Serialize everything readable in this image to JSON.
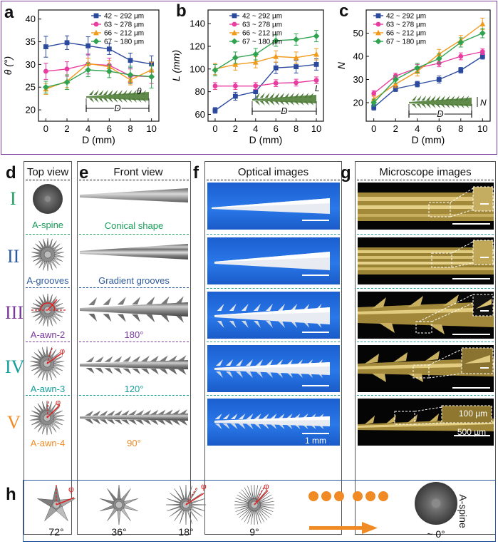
{
  "panels": {
    "a": "a",
    "b": "b",
    "c": "c",
    "d": "d",
    "e": "e",
    "f": "f",
    "g": "g",
    "h": "h"
  },
  "headers": {
    "top_view": "Top view",
    "front_view": "Front view",
    "optical": "Optical images",
    "microscope": "Microscope images"
  },
  "rows": [
    {
      "roman": "I",
      "top_label": "A-spine",
      "front_label": "Conical shape",
      "color": "#1a9c5a"
    },
    {
      "roman": "II",
      "top_label": "A-grooves",
      "front_label": "Gradient grooves",
      "color": "#2d5a9e"
    },
    {
      "roman": "III",
      "top_label": "A-awn-2",
      "front_label": "180°",
      "color": "#7a3a9a"
    },
    {
      "roman": "IV",
      "top_label": "A-awn-3",
      "front_label": "120°",
      "color": "#139e9a"
    },
    {
      "roman": "V",
      "top_label": "A-awn-4",
      "front_label": "90°",
      "color": "#f08a24"
    }
  ],
  "phi_symbol": "φ",
  "scalebars": {
    "optical": "1 mm",
    "micro_small": "100 µm",
    "micro_large": "500 µm"
  },
  "inset_labels": {
    "theta": "θ",
    "d": "D",
    "l": "L",
    "n": "N"
  },
  "panel_h": {
    "angles": [
      "72°",
      "36°",
      "18°",
      "9°",
      "~ 0°"
    ],
    "end_label": "A-spine",
    "dot_color": "#f08a24",
    "arrow_color": "#f08a24"
  },
  "legend": [
    "42 ~ 292 µm",
    "63 ~ 278 µm",
    "66 ~ 212 µm",
    "67 ~ 180 µm"
  ],
  "series_colors": [
    "#2b4a9e",
    "#e83ca0",
    "#f29a1c",
    "#2fa350"
  ],
  "chart_data": [
    {
      "type": "line",
      "title": "",
      "xlabel": "D (mm)",
      "ylabel": "θ (°)",
      "x": [
        0,
        2,
        4,
        6,
        8,
        10
      ],
      "xticks": [
        "0",
        "2",
        "4",
        "6",
        "8",
        "10"
      ],
      "ylim": [
        17.5,
        42
      ],
      "yticks": [
        "20",
        "25",
        "30",
        "35",
        "40"
      ],
      "ytick_values": [
        20,
        25,
        30,
        35,
        40
      ],
      "series": [
        {
          "name": "42 ~ 292 µm",
          "values": [
            33.9,
            34.8,
            34.1,
            33.4,
            30.9,
            30.1
          ],
          "err": [
            2.3,
            1.5,
            2.0,
            1.2,
            1.6,
            1.8
          ]
        },
        {
          "name": "63 ~ 278 µm",
          "values": [
            28.5,
            29.0,
            30.1,
            29.8,
            27.5,
            27.3
          ],
          "err": [
            1.8,
            1.6,
            2.2,
            1.6,
            1.5,
            1.5
          ]
        },
        {
          "name": "66 ~ 212 µm",
          "values": [
            24.6,
            26.3,
            30.2,
            29.5,
            26.6,
            28.8
          ],
          "err": [
            1.2,
            1.4,
            1.2,
            1.4,
            1.1,
            1.7
          ]
        },
        {
          "name": "67 ~ 180 µm",
          "values": [
            25.0,
            26.1,
            28.8,
            28.5,
            27.7,
            27.3
          ],
          "err": [
            1.3,
            1.6,
            1.5,
            1.4,
            1.9,
            2.5
          ]
        }
      ]
    },
    {
      "type": "line",
      "title": "",
      "xlabel": "D (mm)",
      "ylabel": "L (mm)",
      "x": [
        0,
        2,
        4,
        6,
        8,
        10
      ],
      "xticks": [
        "0",
        "2",
        "4",
        "6",
        "8",
        "10"
      ],
      "ylim": [
        54,
        152
      ],
      "yticks": [
        "60",
        "80",
        "100",
        "120",
        "140"
      ],
      "ytick_values": [
        60,
        80,
        100,
        120,
        140
      ],
      "series": [
        {
          "name": "42 ~ 292 µm",
          "values": [
            63.5,
            76.0,
            80.0,
            101.0,
            102.0,
            104.0
          ],
          "err": [
            2.5,
            3.5,
            6.0,
            5.0,
            5.5,
            5.0
          ]
        },
        {
          "name": "63 ~ 278 µm",
          "values": [
            85.0,
            85.0,
            85.0,
            87.5,
            88.0,
            90.0
          ],
          "err": [
            3.0,
            3.0,
            3.0,
            3.0,
            3.0,
            3.0
          ]
        },
        {
          "name": "66 ~ 212 µm",
          "values": [
            100.0,
            104.0,
            106.0,
            111.0,
            110.0,
            113.0
          ],
          "err": [
            5.0,
            5.0,
            5.0,
            5.0,
            5.0,
            5.0
          ]
        },
        {
          "name": "67 ~ 180 µm",
          "values": [
            99.0,
            110.0,
            113.0,
            125.0,
            126.0,
            129.0
          ],
          "err": [
            5.0,
            5.0,
            5.0,
            5.0,
            5.0,
            5.0
          ]
        }
      ]
    },
    {
      "type": "line",
      "title": "",
      "xlabel": "D (mm)",
      "ylabel": "N",
      "x": [
        0,
        2,
        4,
        6,
        8,
        10
      ],
      "xticks": [
        "0",
        "2",
        "4",
        "6",
        "8",
        "10"
      ],
      "ylim": [
        12,
        60
      ],
      "yticks": [
        "20",
        "30",
        "40",
        "50"
      ],
      "ytick_values": [
        20,
        30,
        40,
        50
      ],
      "series": [
        {
          "name": "42 ~ 292 µm",
          "values": [
            18.0,
            26.0,
            28.0,
            30.0,
            34.0,
            40.0
          ],
          "err": [
            1.2,
            1.2,
            1.2,
            1.5,
            1.2,
            1.2
          ]
        },
        {
          "name": "63 ~ 278 µm",
          "values": [
            24.0,
            31.5,
            35.0,
            37.0,
            40.0,
            42.0
          ],
          "err": [
            1.2,
            1.2,
            1.5,
            1.5,
            1.5,
            1.2
          ]
        },
        {
          "name": "66 ~ 212 µm",
          "values": [
            21.5,
            28.0,
            33.5,
            41.0,
            47.0,
            54.0
          ],
          "err": [
            1.5,
            1.5,
            2.0,
            2.0,
            2.0,
            2.5
          ]
        },
        {
          "name": "67 ~ 180 µm",
          "values": [
            20.0,
            30.0,
            35.0,
            39.0,
            46.0,
            50.0
          ],
          "err": [
            1.5,
            1.5,
            2.0,
            2.0,
            2.0,
            2.0
          ]
        }
      ]
    }
  ]
}
